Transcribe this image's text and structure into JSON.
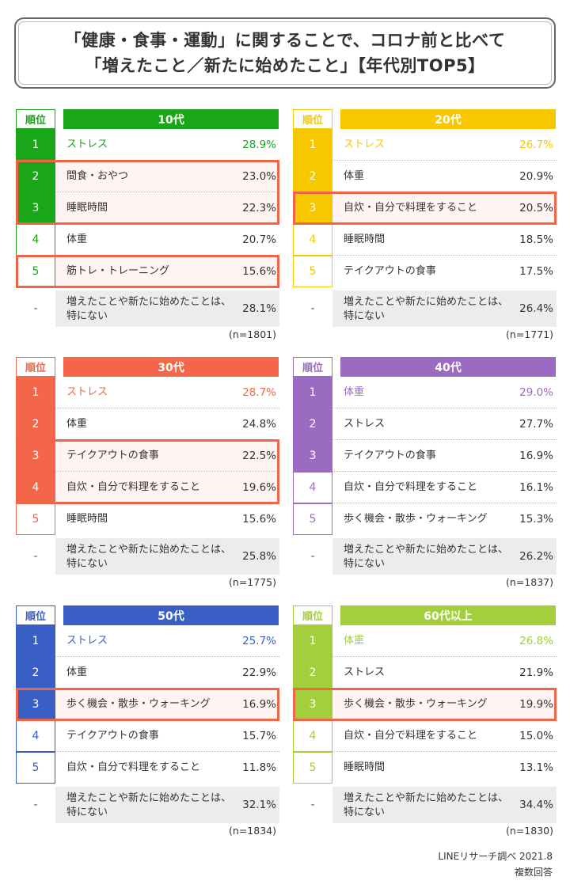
{
  "title": {
    "line1": "「健康・食事・運動」に関することで、コロナ前と比べて",
    "line2": "「増えたこと／新たに始めたこと」【年代別TOP5】"
  },
  "rank_header": "順位",
  "none_rank": "-",
  "footer": {
    "source": "LINEリサーチ調べ 2021.8",
    "note": "複数回答"
  },
  "chart_data": [
    {
      "type": "table",
      "age": "10代",
      "color": "#19a619",
      "rows": [
        {
          "rank": "1",
          "item": "ストレス",
          "value": 28.9,
          "pct": "28.9%"
        },
        {
          "rank": "2",
          "item": "間食・おやつ",
          "value": 23.0,
          "pct": "23.0%"
        },
        {
          "rank": "3",
          "item": "睡眠時間",
          "value": 22.3,
          "pct": "22.3%"
        },
        {
          "rank": "4",
          "item": "体重",
          "value": 20.7,
          "pct": "20.7%"
        },
        {
          "rank": "5",
          "item": "筋トレ・トレーニング",
          "value": 15.6,
          "pct": "15.6%"
        }
      ],
      "none": {
        "line1": "増えたことや新たに始めたことは、",
        "line2": "特にない",
        "value": 28.1,
        "pct": "28.1%"
      },
      "n": "(n=1801)"
    },
    {
      "type": "table",
      "age": "20代",
      "color": "#f7c800",
      "rows": [
        {
          "rank": "1",
          "item": "ストレス",
          "value": 26.7,
          "pct": "26.7%"
        },
        {
          "rank": "2",
          "item": "体重",
          "value": 20.9,
          "pct": "20.9%"
        },
        {
          "rank": "3",
          "item": "自炊・自分で料理をすること",
          "value": 20.5,
          "pct": "20.5%"
        },
        {
          "rank": "4",
          "item": "睡眠時間",
          "value": 18.5,
          "pct": "18.5%"
        },
        {
          "rank": "5",
          "item": "テイクアウトの食事",
          "value": 17.5,
          "pct": "17.5%"
        }
      ],
      "none": {
        "line1": "増えたことや新たに始めたことは、",
        "line2": "特にない",
        "value": 26.4,
        "pct": "26.4%"
      },
      "n": "(n=1771)"
    },
    {
      "type": "table",
      "age": "30代",
      "color": "#f4664a",
      "rows": [
        {
          "rank": "1",
          "item": "ストレス",
          "value": 28.7,
          "pct": "28.7%"
        },
        {
          "rank": "2",
          "item": "体重",
          "value": 24.8,
          "pct": "24.8%"
        },
        {
          "rank": "3",
          "item": "テイクアウトの食事",
          "value": 22.5,
          "pct": "22.5%"
        },
        {
          "rank": "4",
          "item": "自炊・自分で料理をすること",
          "value": 19.6,
          "pct": "19.6%"
        },
        {
          "rank": "5",
          "item": "睡眠時間",
          "value": 15.6,
          "pct": "15.6%"
        }
      ],
      "none": {
        "line1": "増えたことや新たに始めたことは、",
        "line2": "特にない",
        "value": 25.8,
        "pct": "25.8%"
      },
      "n": "(n=1775)"
    },
    {
      "type": "table",
      "age": "40代",
      "color": "#9b6bc2",
      "rows": [
        {
          "rank": "1",
          "item": "体重",
          "value": 29.0,
          "pct": "29.0%"
        },
        {
          "rank": "2",
          "item": "ストレス",
          "value": 27.7,
          "pct": "27.7%"
        },
        {
          "rank": "3",
          "item": "テイクアウトの食事",
          "value": 16.9,
          "pct": "16.9%"
        },
        {
          "rank": "4",
          "item": "自炊・自分で料理をすること",
          "value": 16.1,
          "pct": "16.1%"
        },
        {
          "rank": "5",
          "item": "歩く機会・散歩・ウォーキング",
          "value": 15.3,
          "pct": "15.3%"
        }
      ],
      "none": {
        "line1": "増えたことや新たに始めたことは、",
        "line2": "特にない",
        "value": 26.2,
        "pct": "26.2%"
      },
      "n": "(n=1837)"
    },
    {
      "type": "table",
      "age": "50代",
      "color": "#3a5fc4",
      "rows": [
        {
          "rank": "1",
          "item": "ストレス",
          "value": 25.7,
          "pct": "25.7%"
        },
        {
          "rank": "2",
          "item": "体重",
          "value": 22.9,
          "pct": "22.9%"
        },
        {
          "rank": "3",
          "item": "歩く機会・散歩・ウォーキング",
          "value": 16.9,
          "pct": "16.9%"
        },
        {
          "rank": "4",
          "item": "テイクアウトの食事",
          "value": 15.7,
          "pct": "15.7%"
        },
        {
          "rank": "5",
          "item": "自炊・自分で料理をすること",
          "value": 11.8,
          "pct": "11.8%"
        }
      ],
      "none": {
        "line1": "増えたことや新たに始めたことは、",
        "line2": "特にない",
        "value": 32.1,
        "pct": "32.1%"
      },
      "n": "(n=1834)"
    },
    {
      "type": "table",
      "age": "60代以上",
      "color": "#a4cf3c",
      "rows": [
        {
          "rank": "1",
          "item": "体重",
          "value": 26.8,
          "pct": "26.8%"
        },
        {
          "rank": "2",
          "item": "ストレス",
          "value": 21.9,
          "pct": "21.9%"
        },
        {
          "rank": "3",
          "item": "歩く機会・散歩・ウォーキング",
          "value": 19.9,
          "pct": "19.9%"
        },
        {
          "rank": "4",
          "item": "自炊・自分で料理をすること",
          "value": 15.0,
          "pct": "15.0%"
        },
        {
          "rank": "5",
          "item": "睡眠時間",
          "value": 13.1,
          "pct": "13.1%"
        }
      ],
      "none": {
        "line1": "増えたことや新たに始めたことは、",
        "line2": "特にない",
        "value": 34.4,
        "pct": "34.4%"
      },
      "n": "(n=1830)"
    }
  ]
}
